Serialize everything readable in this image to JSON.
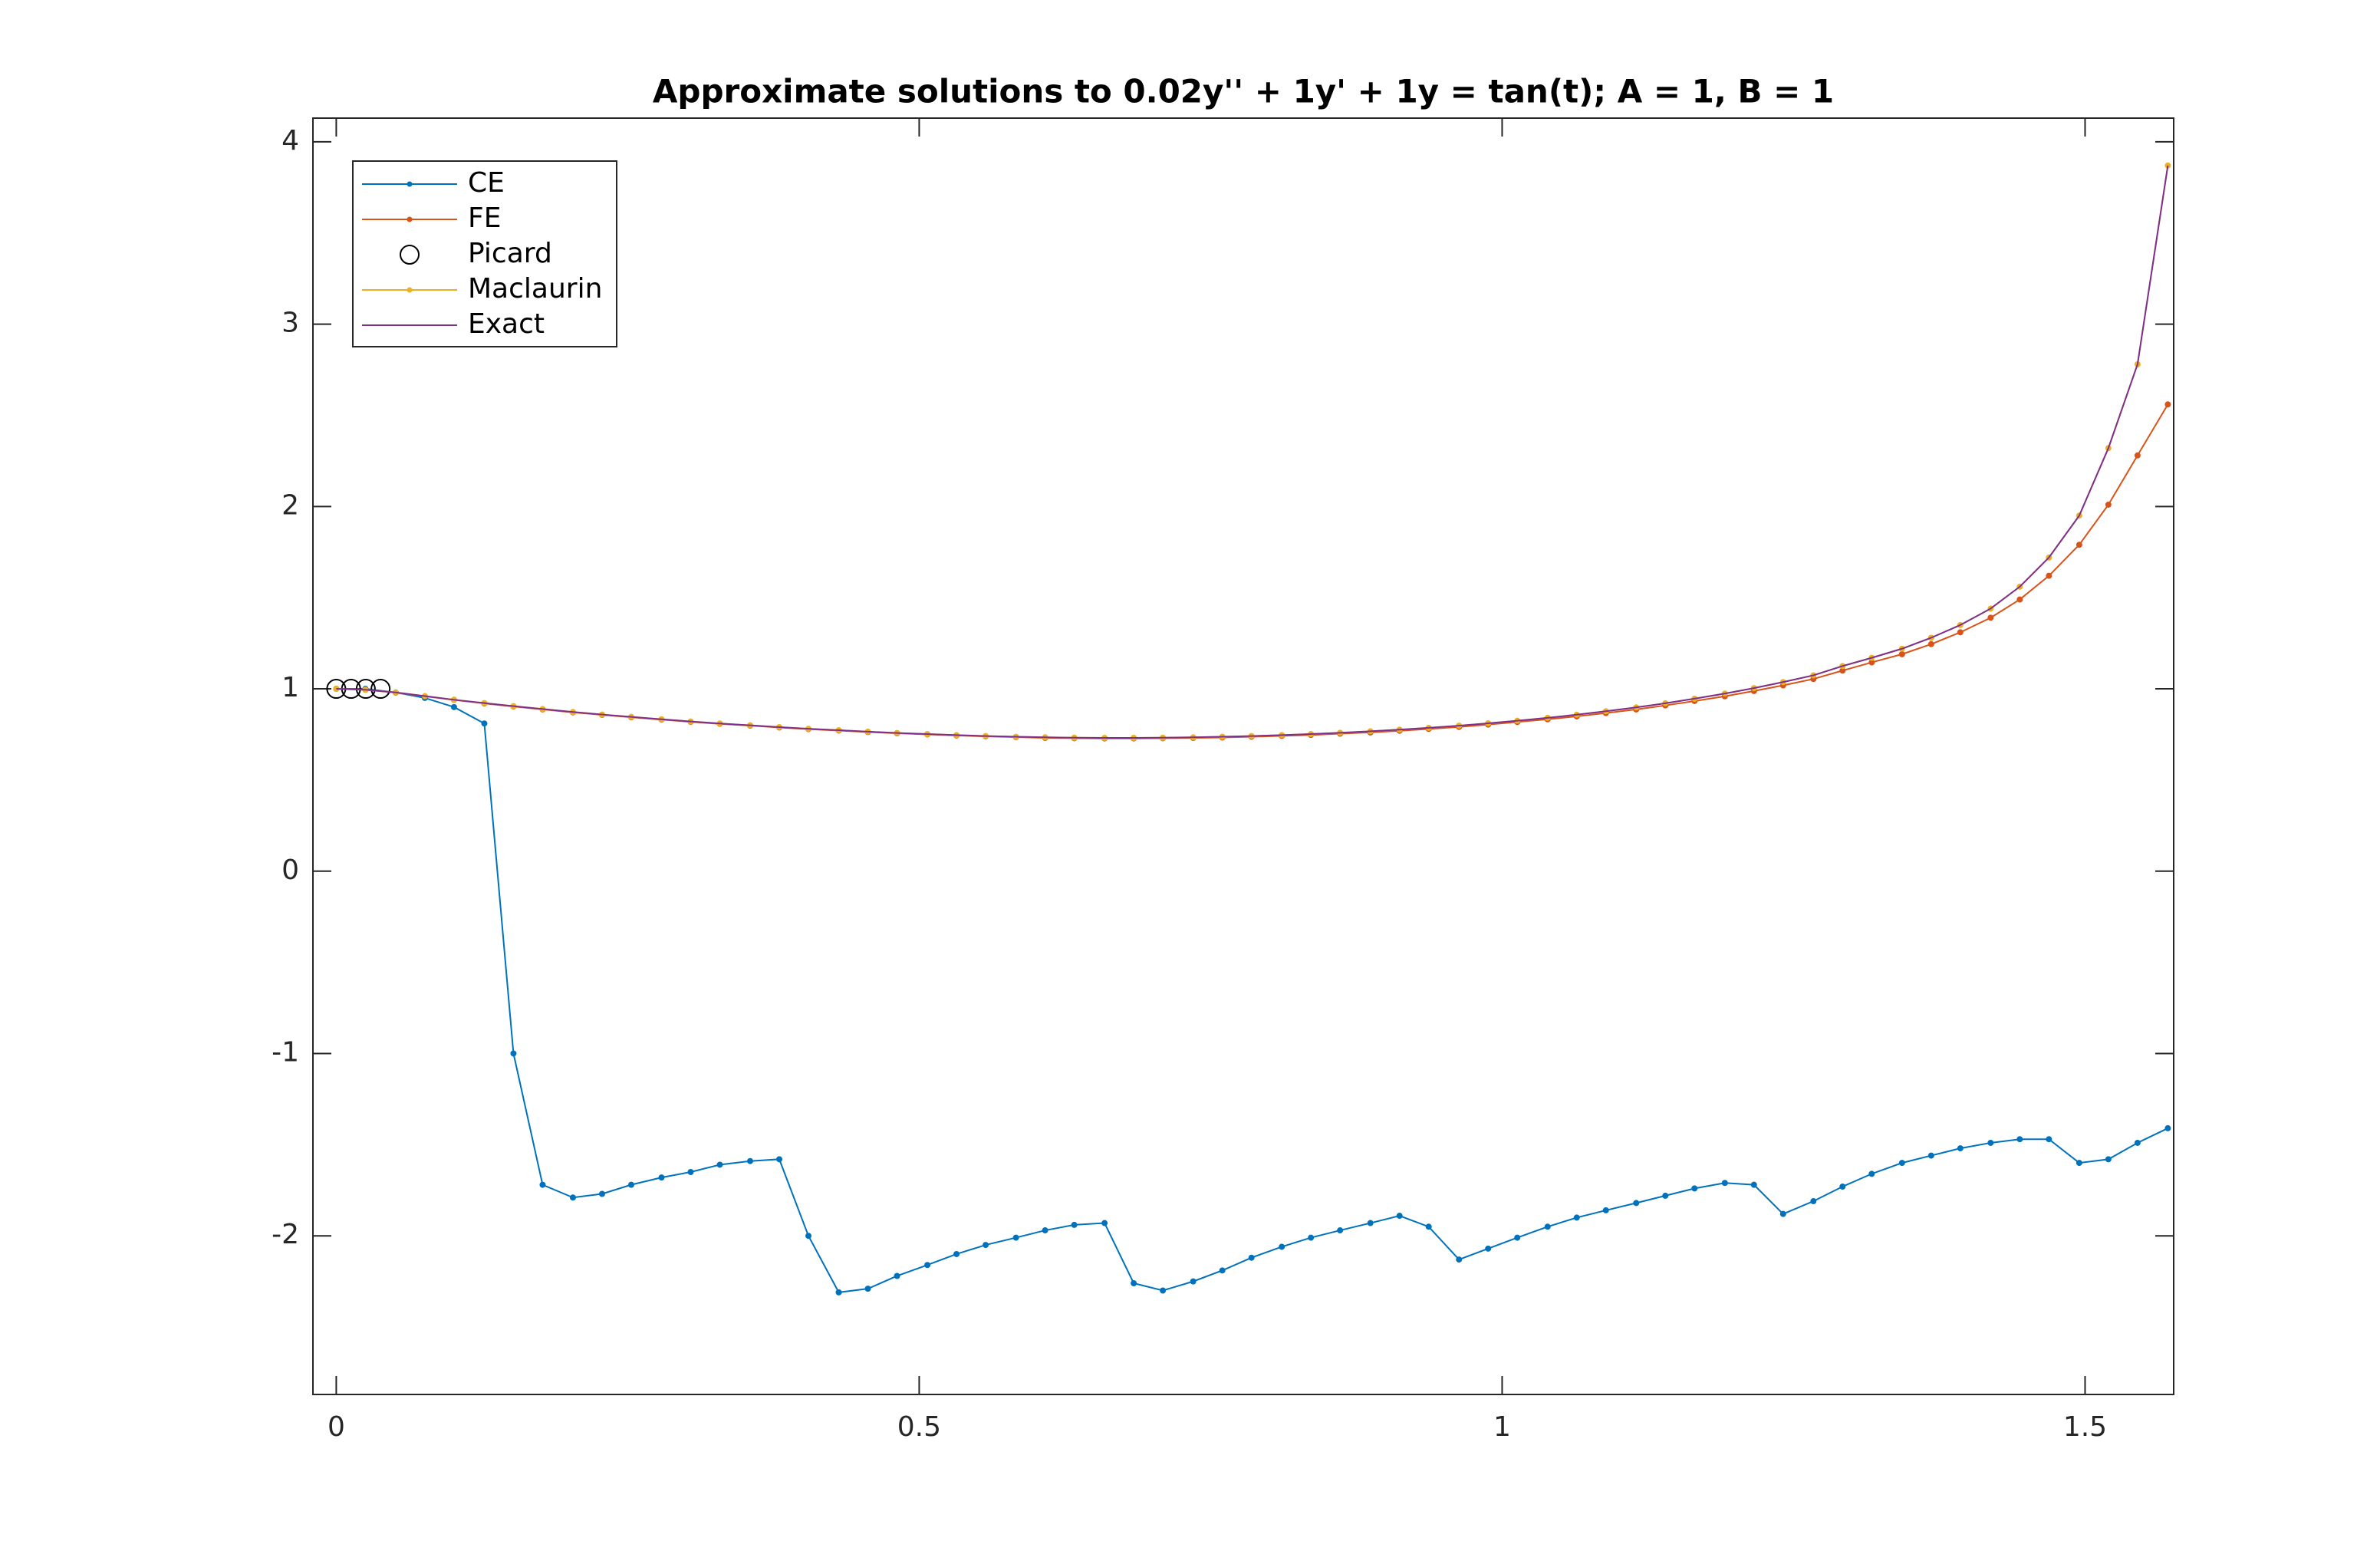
{
  "chart_data": {
    "type": "line",
    "title": "Approximate solutions to 0.02y'' + 1y' + 1y = tan(t); A = 1, B = 1",
    "x": [
      0,
      0.025,
      0.051,
      0.076,
      0.101,
      0.127,
      0.152,
      0.177,
      0.203,
      0.228,
      0.253,
      0.279,
      0.304,
      0.329,
      0.355,
      0.38,
      0.405,
      0.431,
      0.456,
      0.481,
      0.507,
      0.532,
      0.557,
      0.583,
      0.608,
      0.633,
      0.659,
      0.684,
      0.709,
      0.735,
      0.76,
      0.785,
      0.811,
      0.836,
      0.861,
      0.887,
      0.912,
      0.937,
      0.963,
      0.988,
      1.013,
      1.039,
      1.064,
      1.089,
      1.115,
      1.14,
      1.165,
      1.191,
      1.216,
      1.241,
      1.267,
      1.292,
      1.317,
      1.343,
      1.368,
      1.393,
      1.419,
      1.444,
      1.469,
      1.495,
      1.52,
      1.545,
      1.571
    ],
    "series": [
      {
        "name": "CE",
        "color": "#0072BD",
        "marker": "dot",
        "values": [
          1.0,
          1.0,
          0.98,
          0.95,
          0.9,
          0.81,
          -1.0,
          -1.72,
          -1.79,
          -1.77,
          -1.72,
          -1.68,
          -1.65,
          -1.61,
          -1.59,
          -1.58,
          -2.0,
          -2.31,
          -2.29,
          -2.22,
          -2.16,
          -2.1,
          -2.05,
          -2.01,
          -1.97,
          -1.94,
          -1.93,
          -2.26,
          -2.3,
          -2.25,
          -2.19,
          -2.12,
          -2.06,
          -2.01,
          -1.97,
          -1.93,
          -1.89,
          -1.95,
          -2.13,
          -2.07,
          -2.01,
          -1.95,
          -1.9,
          -1.86,
          -1.82,
          -1.78,
          -1.74,
          -1.71,
          -1.72,
          -1.88,
          -1.81,
          -1.73,
          -1.66,
          -1.6,
          -1.56,
          -1.52,
          -1.49,
          -1.47,
          -1.47,
          -1.6,
          -1.58,
          -1.49,
          -1.41
        ]
      },
      {
        "name": "FE",
        "color": "#D95319",
        "marker": "dot",
        "values": [
          1.0,
          0.995,
          0.979,
          0.959,
          0.939,
          0.92,
          0.903,
          0.887,
          0.871,
          0.857,
          0.844,
          0.831,
          0.819,
          0.808,
          0.798,
          0.788,
          0.779,
          0.771,
          0.763,
          0.756,
          0.75,
          0.744,
          0.739,
          0.735,
          0.731,
          0.729,
          0.728,
          0.728,
          0.729,
          0.731,
          0.733,
          0.737,
          0.742,
          0.747,
          0.754,
          0.761,
          0.77,
          0.78,
          0.791,
          0.804,
          0.818,
          0.833,
          0.849,
          0.867,
          0.887,
          0.909,
          0.933,
          0.959,
          0.988,
          1.019,
          1.054,
          1.1,
          1.145,
          1.19,
          1.245,
          1.31,
          1.39,
          1.49,
          1.62,
          1.79,
          2.01,
          2.28,
          2.56
        ]
      },
      {
        "name": "Picard",
        "color": "#000000",
        "marker": "circle",
        "x": [
          0,
          0.0127,
          0.0253,
          0.038
        ],
        "values": [
          1,
          1,
          1,
          1
        ]
      },
      {
        "name": "Maclaurin",
        "color": "#EDB120",
        "marker": "dot",
        "values": [
          1.0,
          0.995,
          0.98,
          0.96,
          0.94,
          0.922,
          0.905,
          0.889,
          0.873,
          0.859,
          0.846,
          0.833,
          0.821,
          0.81,
          0.8,
          0.79,
          0.781,
          0.773,
          0.765,
          0.758,
          0.752,
          0.746,
          0.741,
          0.737,
          0.734,
          0.732,
          0.731,
          0.731,
          0.732,
          0.734,
          0.737,
          0.741,
          0.746,
          0.752,
          0.759,
          0.767,
          0.776,
          0.786,
          0.798,
          0.811,
          0.825,
          0.841,
          0.858,
          0.877,
          0.898,
          0.921,
          0.946,
          0.974,
          1.004,
          1.037,
          1.074,
          1.125,
          1.17,
          1.22,
          1.28,
          1.35,
          1.44,
          1.56,
          1.72,
          1.95,
          2.32,
          2.78,
          3.87
        ]
      },
      {
        "name": "Exact",
        "color": "#7E2F8E",
        "marker": "none",
        "values": [
          1.0,
          0.995,
          0.98,
          0.96,
          0.94,
          0.922,
          0.905,
          0.889,
          0.873,
          0.859,
          0.846,
          0.833,
          0.821,
          0.81,
          0.8,
          0.79,
          0.781,
          0.773,
          0.765,
          0.758,
          0.752,
          0.746,
          0.741,
          0.737,
          0.734,
          0.732,
          0.731,
          0.731,
          0.732,
          0.734,
          0.737,
          0.741,
          0.746,
          0.752,
          0.759,
          0.767,
          0.776,
          0.786,
          0.798,
          0.811,
          0.825,
          0.841,
          0.858,
          0.877,
          0.898,
          0.921,
          0.946,
          0.974,
          1.004,
          1.037,
          1.074,
          1.125,
          1.17,
          1.22,
          1.28,
          1.35,
          1.44,
          1.56,
          1.72,
          1.95,
          2.32,
          2.78,
          3.87
        ]
      }
    ],
    "xlim": [
      -0.02,
      1.576
    ],
    "ylim": [
      -2.87,
      4.13
    ],
    "xticks": [
      0,
      0.5,
      1,
      1.5
    ],
    "yticks": [
      -2,
      -1,
      0,
      1,
      2,
      3,
      4
    ],
    "grid": false,
    "legend": "northwest"
  }
}
